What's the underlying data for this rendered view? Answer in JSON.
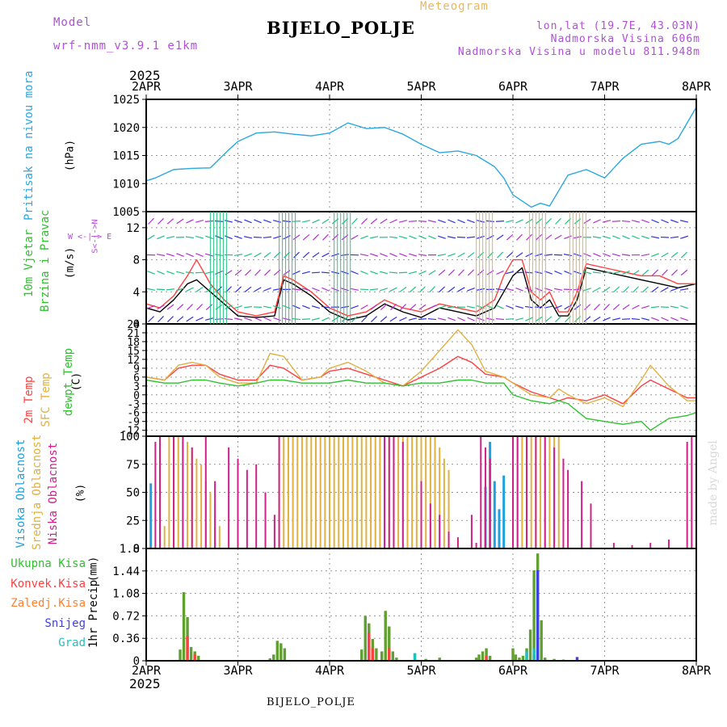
{
  "header": {
    "model_label": "Model",
    "model_name": "wrf-nmm_v3.9.1 e1km",
    "meteogram_label": "Meteogram",
    "station": "BIJELO_POLJE",
    "coords": "lon,lat (19.7E, 43.03N)",
    "altitude": "Nadmorska Visina 606m",
    "model_altitude": "Nadmorska Visina u modelu 811.948m",
    "colors": {
      "model": "#b04fd8",
      "meteogram": "#e8b860",
      "info": "#b04fd8"
    }
  },
  "footer": {
    "station": "BIJELO_POLJE",
    "watermark": "made by Angel"
  },
  "time_axis": {
    "year": "2025",
    "days": [
      "2APR",
      "3APR",
      "4APR",
      "5APR",
      "6APR",
      "7APR",
      "8APR"
    ]
  },
  "chart_data": [
    {
      "type": "line",
      "name": "pressure",
      "ylabel": "Pritisak na nivou mora",
      "unit": "(hPa)",
      "ylim": [
        1005,
        1025
      ],
      "yticks": [
        1005,
        1010,
        1015,
        1020,
        1025
      ],
      "grid": true,
      "x_days": [
        0,
        0.1,
        0.3,
        0.5,
        0.7,
        0.9,
        1.0,
        1.2,
        1.4,
        1.6,
        1.8,
        2.0,
        2.2,
        2.4,
        2.6,
        2.8,
        3.0,
        3.2,
        3.4,
        3.6,
        3.8,
        3.9,
        4.0,
        4.2,
        4.3,
        4.4,
        4.6,
        4.8,
        5.0,
        5.2,
        5.4,
        5.6,
        5.7,
        5.8,
        6.0
      ],
      "series": [
        {
          "color": "#2aa8e0",
          "values": [
            1010.5,
            1011,
            1012.5,
            1012.7,
            1012.8,
            1016,
            1017.5,
            1019,
            1019.2,
            1018.8,
            1018.5,
            1019,
            1020.8,
            1019.8,
            1020,
            1018.8,
            1017,
            1015.5,
            1015.8,
            1015,
            1013,
            1011,
            1008,
            1005.8,
            1006.5,
            1006,
            1011.5,
            1012.5,
            1011,
            1014.5,
            1017,
            1017.5,
            1017,
            1018,
            1023.6
          ]
        }
      ]
    },
    {
      "type": "line",
      "name": "wind",
      "ylabel": "10m Vjetar Brzina i Pravac",
      "unit": "(m/s)",
      "compass": "W <-|-> E",
      "compass_v": "S<-|->N",
      "ylim": [
        0,
        14
      ],
      "yticks": [
        0,
        4,
        8,
        12
      ],
      "grid": true,
      "x_days": [
        0,
        0.15,
        0.3,
        0.45,
        0.55,
        0.7,
        0.85,
        1.0,
        1.2,
        1.4,
        1.5,
        1.6,
        1.8,
        2.0,
        2.2,
        2.4,
        2.6,
        2.8,
        3.0,
        3.2,
        3.4,
        3.6,
        3.8,
        3.9,
        4.0,
        4.1,
        4.2,
        4.3,
        4.4,
        4.5,
        4.6,
        4.7,
        4.8,
        5.0,
        5.2,
        5.4,
        5.6,
        5.8,
        6.0
      ],
      "series": [
        {
          "name": "speed",
          "color": "#000000",
          "values": [
            2,
            1.5,
            3,
            5,
            5.5,
            4,
            2.5,
            1,
            0.8,
            1,
            5.5,
            5,
            3.5,
            1.5,
            0.5,
            1,
            2.5,
            1.5,
            0.8,
            2,
            1.5,
            1,
            2,
            4,
            6,
            7,
            3,
            2,
            3,
            1,
            1,
            3,
            7,
            6.5,
            6,
            5.5,
            5,
            4.5,
            5
          ]
        },
        {
          "name": "gust",
          "color": "#ff4040",
          "values": [
            2.5,
            2,
            3.5,
            6,
            8,
            5,
            3,
            1.5,
            1,
            1.5,
            6,
            5.5,
            4,
            2,
            1,
            1.5,
            3,
            2,
            1.5,
            2.5,
            2,
            1.5,
            3,
            6,
            8,
            8,
            4,
            3,
            4,
            1.5,
            1.5,
            4,
            7.5,
            7,
            6.5,
            6,
            6,
            5,
            5
          ]
        }
      ]
    },
    {
      "type": "line",
      "name": "temperature",
      "ylabel": "2m Temp / SFC Temp / dewpt Temp",
      "unit": "(C)",
      "ylim": [
        -14,
        24
      ],
      "yticks": [
        -12,
        -9,
        -6,
        -3,
        0,
        3,
        6,
        9,
        12,
        15,
        18,
        21,
        24
      ],
      "grid": true,
      "x_days": [
        0,
        0.2,
        0.35,
        0.5,
        0.65,
        0.8,
        1.0,
        1.2,
        1.35,
        1.5,
        1.7,
        1.9,
        2.0,
        2.2,
        2.4,
        2.6,
        2.8,
        3.0,
        3.2,
        3.4,
        3.55,
        3.7,
        3.9,
        4.0,
        4.2,
        4.4,
        4.5,
        4.6,
        4.8,
        5.0,
        5.2,
        5.4,
        5.5,
        5.7,
        5.9,
        6.0
      ],
      "series": [
        {
          "name": "2m Temp",
          "color": "#ff4040",
          "values": [
            6,
            5,
            9,
            10,
            10,
            7,
            5,
            5,
            10,
            9,
            5,
            6,
            8,
            9,
            7,
            5,
            3,
            6,
            9,
            13,
            11,
            7,
            6,
            4,
            1,
            -1,
            -2,
            -1,
            -2,
            0,
            -3,
            3,
            5,
            2,
            -1,
            -1
          ]
        },
        {
          "name": "SFC Temp",
          "color": "#e0b040",
          "values": [
            6,
            5,
            10,
            11,
            10,
            6,
            4,
            4,
            14,
            13,
            5,
            6,
            9,
            11,
            8,
            4,
            3,
            8,
            15,
            22,
            17,
            8,
            6,
            4,
            0,
            -1,
            2,
            0,
            -3,
            -1,
            -4,
            5,
            10,
            3,
            -2,
            -2
          ]
        },
        {
          "name": "dewpt Temp",
          "color": "#30c030",
          "values": [
            5,
            4,
            4,
            5,
            5,
            4,
            3,
            4,
            5,
            5,
            4,
            4,
            4,
            5,
            4,
            4,
            3,
            4,
            4,
            5,
            5,
            4,
            4,
            0,
            -2,
            -3,
            -2,
            -3,
            -8,
            -9,
            -10,
            -9,
            -12,
            -8,
            -7,
            -6
          ]
        }
      ]
    },
    {
      "type": "bar",
      "name": "cloud",
      "ylabel": "Visoka Oblacnost / Srednja Oblacnost / Niska Oblacnost",
      "unit": "(%)",
      "ylim": [
        0,
        100
      ],
      "yticks": [
        0,
        25,
        50,
        75,
        100
      ],
      "grid": true,
      "series": [
        {
          "name": "Visoka Oblacnost",
          "color": "#20a0e0",
          "x_days": [
            0.05,
            3.7,
            3.75,
            3.8,
            3.85,
            3.9
          ],
          "values": [
            58,
            55,
            95,
            60,
            35,
            65
          ]
        },
        {
          "name": "Srednja Oblacnost",
          "color": "#e0b040",
          "x_days": [
            0.2,
            0.25,
            0.3,
            0.35,
            0.4,
            0.45,
            0.5,
            0.55,
            0.6,
            0.65,
            0.7,
            0.75,
            0.8,
            1.45,
            1.5,
            1.55,
            1.6,
            1.65,
            1.7,
            1.75,
            1.8,
            1.85,
            1.9,
            1.95,
            2.0,
            2.05,
            2.1,
            2.15,
            2.2,
            2.25,
            2.3,
            2.35,
            2.4,
            2.45,
            2.5,
            2.55,
            2.6,
            2.65,
            2.7,
            2.75,
            2.8,
            2.85,
            2.9,
            2.95,
            3.0,
            3.05,
            3.1,
            3.15,
            3.2,
            3.25,
            3.3,
            4.05,
            4.1,
            4.15,
            4.2,
            4.25,
            4.3,
            4.35,
            4.4,
            4.45,
            4.5
          ],
          "values": [
            20,
            100,
            100,
            100,
            100,
            95,
            90,
            80,
            75,
            60,
            50,
            30,
            20,
            100,
            100,
            100,
            100,
            100,
            100,
            100,
            100,
            100,
            100,
            100,
            100,
            100,
            100,
            100,
            100,
            100,
            100,
            100,
            100,
            100,
            100,
            100,
            100,
            100,
            100,
            100,
            100,
            100,
            100,
            100,
            100,
            100,
            100,
            100,
            90,
            80,
            70,
            100,
            100,
            100,
            100,
            100,
            100,
            100,
            100,
            100,
            100
          ]
        },
        {
          "name": "Niska Oblacnost",
          "color": "#d0208a",
          "x_days": [
            0.1,
            0.15,
            0.3,
            0.4,
            0.5,
            0.65,
            0.75,
            0.9,
            1.0,
            1.1,
            1.2,
            1.3,
            1.4,
            1.45,
            2.6,
            2.65,
            2.7,
            2.8,
            3.0,
            3.1,
            3.2,
            3.3,
            3.4,
            3.55,
            3.6,
            3.65,
            3.7,
            3.75,
            4.0,
            4.05,
            4.15,
            4.25,
            4.35,
            4.45,
            4.55,
            4.6,
            4.75,
            4.85,
            5.1,
            5.3,
            5.5,
            5.7,
            5.9,
            5.95
          ],
          "values": [
            95,
            100,
            100,
            100,
            90,
            100,
            60,
            90,
            80,
            70,
            75,
            50,
            30,
            100,
            100,
            100,
            100,
            95,
            60,
            40,
            30,
            15,
            10,
            30,
            5,
            100,
            90,
            80,
            100,
            100,
            100,
            100,
            100,
            90,
            80,
            70,
            60,
            40,
            5,
            3,
            5,
            8,
            95,
            100
          ]
        }
      ]
    },
    {
      "type": "bar",
      "name": "precip",
      "ylabel": "1hr Precip",
      "unit": "(mm)",
      "ylim": [
        0,
        1.8
      ],
      "yticks": [
        0,
        0.36,
        0.72,
        1.08,
        1.44,
        1.8
      ],
      "grid": true,
      "legend": [
        "Ukupna Kisa",
        "Konvek.Kisa",
        "Zaledj.Kisa",
        "Snijeg",
        "Grad"
      ],
      "series": [
        {
          "name": "Ukupna Kisa",
          "color": "#60a030",
          "x_days": [
            0.37,
            0.41,
            0.45,
            0.49,
            0.53,
            0.57,
            1.35,
            1.39,
            1.43,
            1.47,
            1.51,
            2.35,
            2.39,
            2.43,
            2.47,
            2.51,
            2.57,
            2.61,
            2.65,
            2.69,
            2.73,
            2.93,
            3.05,
            3.2,
            3.6,
            3.63,
            3.67,
            3.71,
            3.75,
            4.0,
            4.03,
            4.07,
            4.11,
            4.15,
            4.19,
            4.23,
            4.27,
            4.31,
            4.35,
            4.45,
            4.55
          ],
          "values": [
            0.18,
            1.1,
            0.7,
            0.22,
            0.15,
            0.08,
            0.04,
            0.1,
            0.32,
            0.28,
            0.2,
            0.18,
            0.72,
            0.6,
            0.35,
            0.2,
            0.15,
            0.8,
            0.55,
            0.15,
            0.05,
            0.12,
            0.03,
            0.05,
            0.05,
            0.1,
            0.15,
            0.2,
            0.08,
            0.2,
            0.1,
            0.05,
            0.08,
            0.2,
            0.5,
            1.45,
            1.72,
            0.65,
            0.05,
            0.03,
            0.02
          ]
        },
        {
          "name": "Konvek.Kisa",
          "color": "#ff4040",
          "x_days": [
            0.45,
            0.53,
            2.43,
            2.47,
            2.65,
            3.71
          ],
          "values": [
            0.4,
            0.1,
            0.45,
            0.2,
            0.2,
            0.08
          ]
        },
        {
          "name": "Snijeg",
          "color": "#4040e0",
          "x_days": [
            4.23,
            4.27,
            4.7
          ],
          "values": [
            0.1,
            1.45,
            0.06
          ]
        },
        {
          "name": "Grad",
          "color": "#20c0c0",
          "x_days": [
            2.93,
            4.15,
            4.23
          ],
          "values": [
            0.12,
            0.15,
            0.2
          ]
        }
      ]
    }
  ],
  "panel_labels": {
    "pressure": {
      "text": "Pritisak na nivou mora",
      "color": "#2aa8e0"
    },
    "wind_a": {
      "text": "10m Vjetar",
      "color": "#30c030"
    },
    "wind_b": {
      "text": "Brzina i Pravac",
      "color": "#30c030"
    },
    "temp_a": {
      "text": "2m Temp",
      "color": "#ff4040"
    },
    "temp_b": {
      "text": "SFC Temp",
      "color": "#e0b040"
    },
    "temp_c": {
      "text": "dewpt Temp",
      "color": "#30c030"
    },
    "cloud_a": {
      "text": "Visoka Oblacnost",
      "color": "#20a0e0"
    },
    "cloud_b": {
      "text": "Srednja Oblacnost",
      "color": "#e0b040"
    },
    "cloud_c": {
      "text": "Niska Oblacnost",
      "color": "#d0208a"
    },
    "precip_items": [
      {
        "text": "Ukupna Kisa",
        "color": "#30c030"
      },
      {
        "text": "Konvek.Kisa",
        "color": "#ff4040"
      },
      {
        "text": "Zaledj.Kisa",
        "color": "#ff8030"
      },
      {
        "text": "Snijeg",
        "color": "#4040e0"
      },
      {
        "text": "Grad",
        "color": "#20c0c0"
      }
    ]
  }
}
